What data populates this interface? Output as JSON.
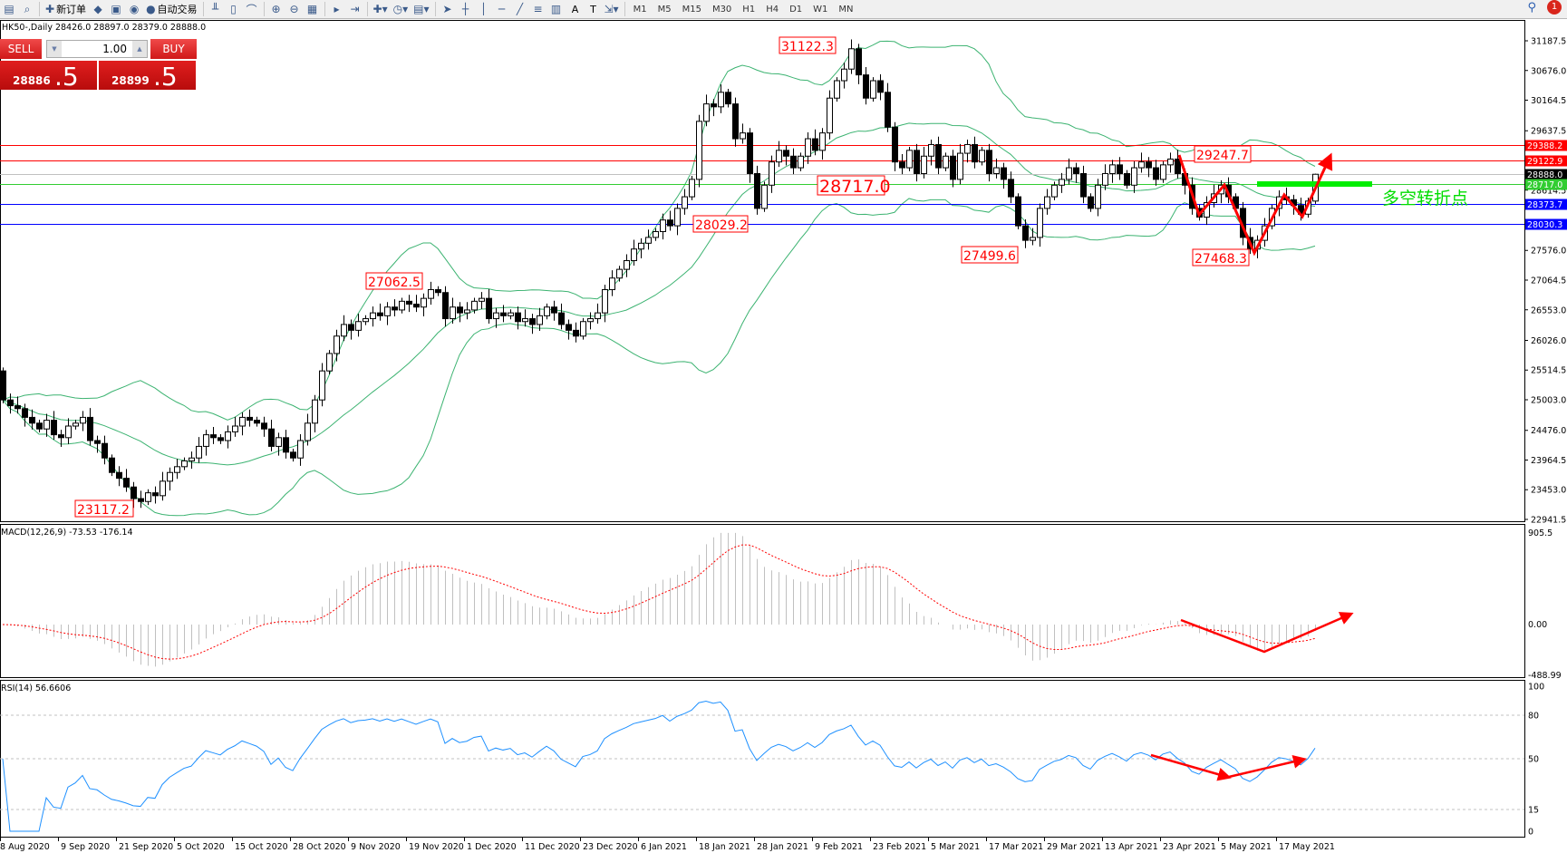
{
  "toolbar": {
    "items": [
      {
        "icon": "chart-window-icon",
        "label": ""
      },
      {
        "icon": "zoom-window-icon",
        "label": ""
      },
      {
        "icon": "new-order-icon",
        "label": "新订单"
      },
      {
        "icon": "history-icon",
        "label": ""
      },
      {
        "icon": "terminal-icon",
        "label": ""
      },
      {
        "icon": "signal-icon",
        "label": ""
      },
      {
        "icon": "autotrading-icon",
        "label": "自动交易"
      },
      {
        "icon": "bar-chart-icon",
        "label": ""
      },
      {
        "icon": "candlestick-icon",
        "label": ""
      },
      {
        "icon": "line-chart-icon",
        "label": ""
      },
      {
        "icon": "zoom-in-icon",
        "label": ""
      },
      {
        "icon": "zoom-out-icon",
        "label": ""
      },
      {
        "icon": "tile-windows-icon",
        "label": ""
      },
      {
        "icon": "chart-shift-icon",
        "label": ""
      },
      {
        "icon": "autoscroll-icon",
        "label": ""
      },
      {
        "icon": "indicators-icon",
        "label": ""
      },
      {
        "icon": "periods-icon",
        "label": ""
      },
      {
        "icon": "templates-icon",
        "label": ""
      },
      {
        "icon": "cursor-icon",
        "label": ""
      },
      {
        "icon": "crosshair-icon",
        "label": ""
      },
      {
        "icon": "vertical-line-icon",
        "label": ""
      },
      {
        "icon": "horizontal-line-icon",
        "label": ""
      },
      {
        "icon": "trendline-icon",
        "label": ""
      },
      {
        "icon": "fibonacci-icon",
        "label": ""
      },
      {
        "icon": "channel-icon",
        "label": ""
      },
      {
        "icon": "text-icon",
        "label": "A"
      },
      {
        "icon": "text-label-icon",
        "label": "T"
      },
      {
        "icon": "arrows-icon",
        "label": ""
      }
    ],
    "timeframes": [
      "M1",
      "M5",
      "M15",
      "M30",
      "H1",
      "H4",
      "D1",
      "W1",
      "MN"
    ],
    "notification_count": "1"
  },
  "chart_title": "HK50-,Daily  28426.0 28897.0 28379.0 28888.0",
  "trade_panel": {
    "sell_label": "SELL",
    "buy_label": "BUY",
    "lot": "1.00",
    "sell_price_main": "28886",
    "sell_price_frac": ".5",
    "buy_price_main": "28899",
    "buy_price_frac": ".5"
  },
  "chart_data": {
    "type": "candlestick",
    "symbol": "HK50-",
    "timeframe": "Daily",
    "last_bar": {
      "open": 28426.0,
      "high": 28897.0,
      "low": 28379.0,
      "close": 28888.0
    },
    "closes": [
      25000,
      24900,
      24850,
      24700,
      24600,
      24500,
      24650,
      24400,
      24350,
      24550,
      24600,
      24700,
      24300,
      24250,
      24000,
      23750,
      23650,
      23500,
      23300,
      23250,
      23400,
      23350,
      23600,
      23750,
      23850,
      23950,
      24000,
      24200,
      24400,
      24350,
      24300,
      24450,
      24550,
      24700,
      24650,
      24600,
      24500,
      24200,
      24350,
      24100,
      24000,
      24300,
      24600,
      25000,
      25500,
      25800,
      26100,
      26300,
      26200,
      26350,
      26400,
      26500,
      26450,
      26600,
      26550,
      26700,
      26650,
      26600,
      26750,
      26900,
      26850,
      26400,
      26600,
      26500,
      26550,
      26700,
      26750,
      26400,
      26500,
      26450,
      26500,
      26350,
      26400,
      26300,
      26450,
      26600,
      26500,
      26300,
      26200,
      26100,
      26350,
      26400,
      26500,
      26900,
      27100,
      27250,
      27400,
      27600,
      27700,
      27800,
      27900,
      28100,
      28000,
      28300,
      28500,
      28800,
      29800,
      30100,
      30050,
      30300,
      30100,
      29500,
      29600,
      28900,
      28300,
      28700,
      29100,
      29300,
      29200,
      29000,
      29200,
      29500,
      29300,
      29600,
      30200,
      30500,
      30700,
      31050,
      30600,
      30200,
      30500,
      30300,
      29700,
      29100,
      29000,
      29300,
      28900,
      29200,
      29400,
      29000,
      29200,
      28800,
      29250,
      29400,
      29100,
      29300,
      28900,
      29000,
      28800,
      28500,
      28000,
      27750,
      27800,
      28300,
      28500,
      28700,
      28800,
      29000,
      28900,
      28500,
      28300,
      28700,
      28900,
      29050,
      28900,
      28700,
      29000,
      29100,
      29000,
      28800,
      29050,
      29150,
      28900,
      28700,
      28300,
      28150,
      28400,
      28550,
      28700,
      28500,
      28300,
      27800,
      27600,
      27750,
      28000,
      28300,
      28500,
      28450,
      28350,
      28200,
      28426,
      28888
    ],
    "first_open": 25500,
    "price_axis": [
      "31187.5",
      "30676.0",
      "30164.5",
      "29637.5",
      "28614.5",
      "27576.0",
      "27064.5",
      "26553.0",
      "26026.0",
      "25514.5",
      "25003.0",
      "24476.0",
      "23964.5",
      "23453.0",
      "22941.5"
    ],
    "price_range": [
      22941.5,
      31187.5
    ],
    "date_axis": [
      "8 Aug 2020",
      "9 Sep 2020",
      "21 Sep 2020",
      "5 Oct 2020",
      "15 Oct 2020",
      "28 Oct 2020",
      "9 Nov 2020",
      "19 Nov 2020",
      "1 Dec 2020",
      "11 Dec 2020",
      "23 Dec 2020",
      "6 Jan 2021",
      "18 Jan 2021",
      "28 Jan 2021",
      "9 Feb 2021",
      "23 Feb 2021",
      "5 Mar 2021",
      "17 Mar 2021",
      "29 Mar 2021",
      "13 Apr 2021",
      "23 Apr 2021",
      "5 May 2021",
      "17 May 2021"
    ],
    "overlay": "Bollinger Bands (20, 2)",
    "horizontal_lines": [
      {
        "price": "29388.2",
        "color": "#ff0000"
      },
      {
        "price": "29122.9",
        "color": "#ff0000"
      },
      {
        "price": "28888.0",
        "color": "#000000",
        "line": "#c0c0c0"
      },
      {
        "price": "28717.0",
        "color": "#32cd32"
      },
      {
        "price": "28373.7",
        "color": "#0000ff"
      },
      {
        "price": "28030.3",
        "color": "#0000ff"
      }
    ],
    "annotations": [
      "31122.3",
      "28717.0",
      "28029.2",
      "27062.5",
      "23117.2",
      "27499.6",
      "29247.7",
      "27468.3"
    ],
    "turning_point_text": "多空转折点",
    "colors": {
      "band": "#3cb371",
      "rsi": "#1e90ff",
      "signal": "#ff0000",
      "hist": "#c0c0c0",
      "arrow": "#ff0000",
      "green_bar": "#00ee00"
    },
    "macd": {
      "label": "MACD(12,26,9) -73.53 -176.14",
      "axis": [
        "905.5",
        "0.00",
        "-488.99"
      ],
      "range": [
        -488.99,
        905.5
      ]
    },
    "rsi": {
      "label": "RSI(14) 56.6606",
      "axis": [
        "100",
        "80",
        "50",
        "15",
        "0"
      ],
      "levels": [
        80,
        50,
        15
      ]
    }
  }
}
